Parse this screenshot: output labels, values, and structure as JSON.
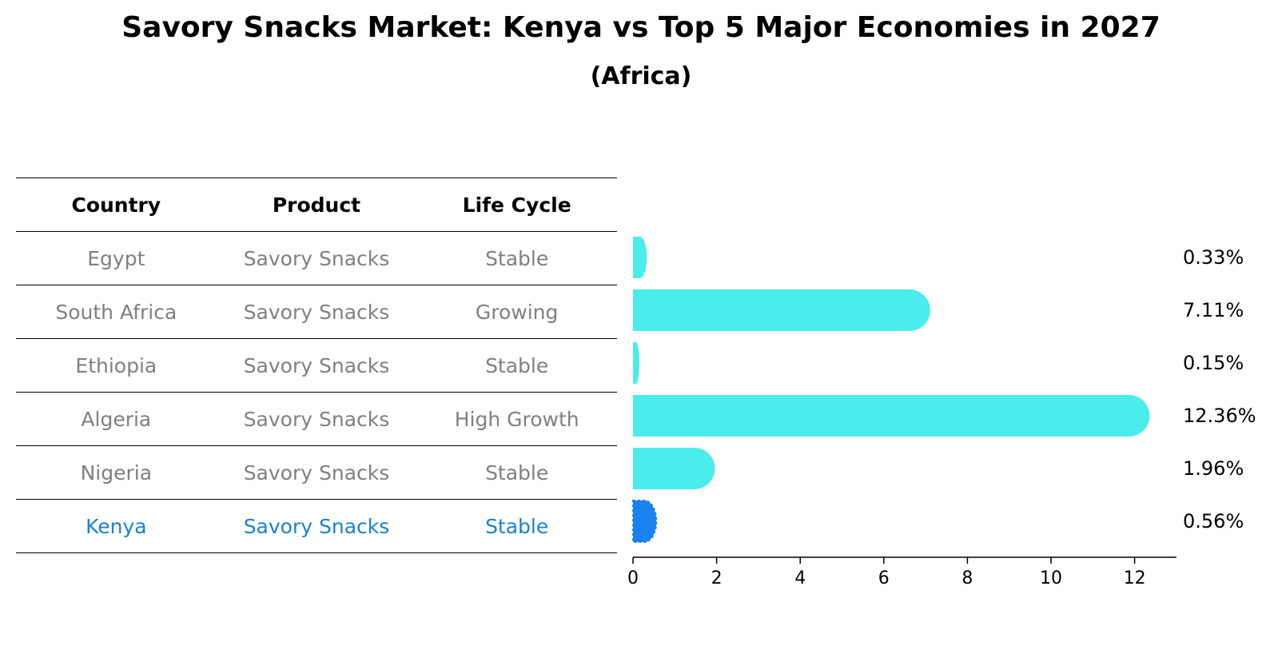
{
  "chart_data": {
    "type": "bar",
    "title": "Savory Snacks Market: Kenya vs Top 5 Major Economies in 2027",
    "subtitle": "(Africa)",
    "table": {
      "headers": [
        "Country",
        "Product",
        "Life Cycle"
      ],
      "rows": [
        [
          "Egypt",
          "Savory Snacks",
          "Stable"
        ],
        [
          "South Africa",
          "Savory Snacks",
          "Growing"
        ],
        [
          "Ethiopia",
          "Savory Snacks",
          "Stable"
        ],
        [
          "Algeria",
          "Savory Snacks",
          "High Growth"
        ],
        [
          "Nigeria",
          "Savory Snacks",
          "Stable"
        ],
        [
          "Kenya",
          "Savory Snacks",
          "Stable"
        ]
      ],
      "highlight_row": 5
    },
    "categories": [
      "Egypt",
      "South Africa",
      "Ethiopia",
      "Algeria",
      "Nigeria",
      "Kenya"
    ],
    "values": [
      0.33,
      7.11,
      0.15,
      12.36,
      1.96,
      0.56
    ],
    "value_labels": [
      "0.33%",
      "7.11%",
      "0.15%",
      "12.36%",
      "1.96%",
      "0.56%"
    ],
    "xticks": [
      "0",
      "2",
      "4",
      "6",
      "8",
      "10",
      "12"
    ],
    "xlim": [
      0,
      13
    ],
    "xlabel": "",
    "ylabel": "",
    "colors": {
      "default": "#4aedeb",
      "highlight": "#1a82f0"
    },
    "highlight_category": "Kenya"
  }
}
